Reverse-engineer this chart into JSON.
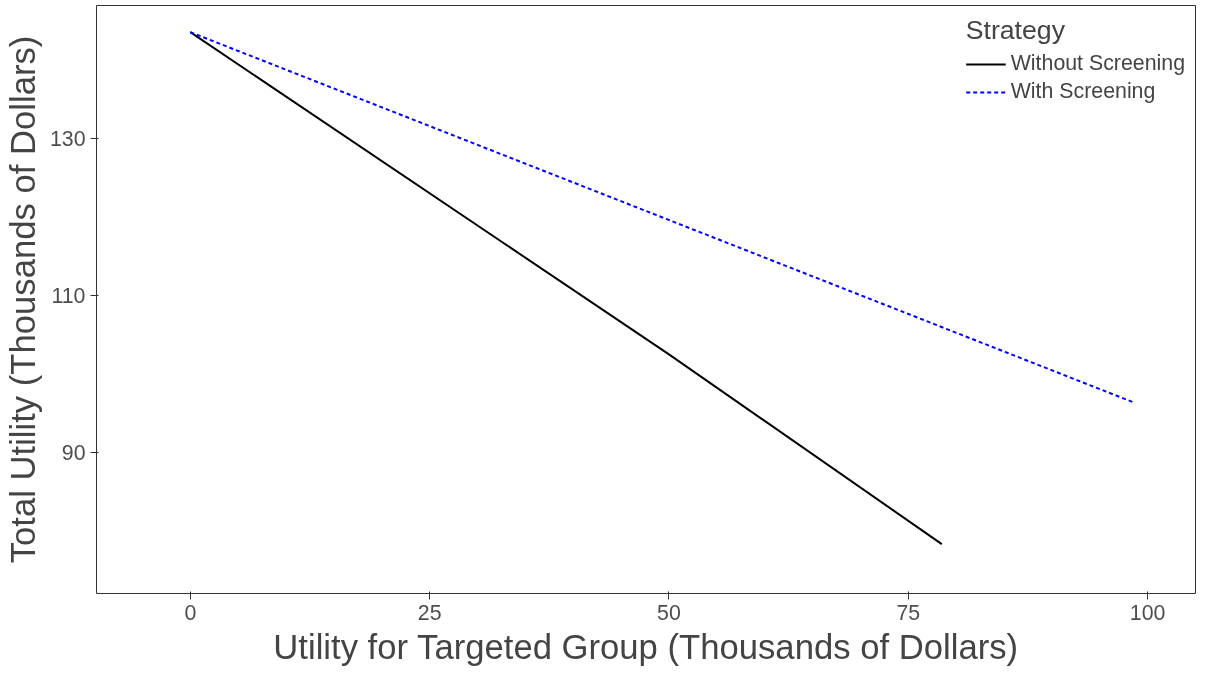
{
  "chart_data": {
    "type": "line",
    "xlabel": "Utility for Targeted Group (Thousands of Dollars)",
    "ylabel": "Total Utility (Thousands of Dollars)",
    "legend_title": "Strategy",
    "series": [
      {
        "name": "Without Screening",
        "color": "#000000",
        "line_style": "solid",
        "x": [
          0,
          50,
          78.5
        ],
        "values": [
          143.6,
          102.5,
          78.3
        ]
      },
      {
        "name": "With Screening",
        "color": "#0000ff",
        "line_style": "dashed",
        "x": [
          0,
          98.7
        ],
        "values": [
          143.6,
          96.3
        ]
      }
    ],
    "xlim": [
      -9.8,
      105
    ],
    "ylim": [
      72,
      147
    ],
    "xticks": [
      0,
      25,
      50,
      75,
      100
    ],
    "yticks": [
      90,
      110,
      130
    ],
    "grid": false,
    "legend": "top right"
  }
}
